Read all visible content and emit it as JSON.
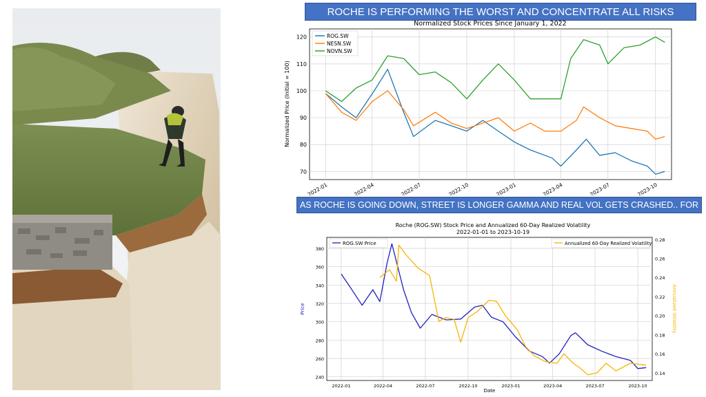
{
  "banners": {
    "top": "ROCHE IS PERFORMING THE WORST AND CONCENTRATE ALL RISKS",
    "middle": "AS ROCHE IS GOING DOWN, STREET IS LONGER GAMMA AND REAL VOL GETS CRASHED.. FOR THE MOMENT"
  },
  "colors": {
    "banner": "#4472c4",
    "rog": "#1f77b4",
    "nesn": "#ff7f0e",
    "novn": "#2ca02c",
    "price": "#1f1fbf",
    "vol": "#f5b400"
  },
  "chart_data": [
    {
      "type": "line",
      "title": "Normalized Stock Prices Since January 1, 2022",
      "xlabel": "",
      "ylabel": "Normalized Price (Initial = 100)",
      "x_ticks": [
        "2022-01",
        "2022-04",
        "2022-07",
        "2022-10",
        "2023-01",
        "2023-04",
        "2023-07",
        "2023-10"
      ],
      "y_ticks": [
        70,
        80,
        90,
        100,
        110,
        120
      ],
      "xlim": [
        "2021-12-01",
        "2023-11-01"
      ],
      "ylim": [
        67,
        123
      ],
      "grid": true,
      "legend": "top-left",
      "series": [
        {
          "name": "ROG.SW",
          "x": [
            "2022-01-01",
            "2022-02-01",
            "2022-03-01",
            "2022-04-05",
            "2022-05-01",
            "2022-06-01",
            "2022-06-20",
            "2022-08-01",
            "2022-09-01",
            "2022-10-01",
            "2022-11-01",
            "2022-12-01",
            "2023-01-01",
            "2023-02-01",
            "2023-03-15",
            "2023-04-01",
            "2023-05-01",
            "2023-05-20",
            "2023-06-15",
            "2023-07-15",
            "2023-08-15",
            "2023-09-15",
            "2023-10-01",
            "2023-10-19"
          ],
          "values": [
            99,
            94,
            90,
            100,
            108,
            92,
            83,
            89,
            87,
            85,
            89,
            85,
            81,
            78,
            75,
            72,
            78,
            82,
            76,
            77,
            74,
            72,
            69,
            70
          ]
        },
        {
          "name": "NESN.SW",
          "x": [
            "2022-01-01",
            "2022-02-01",
            "2022-03-01",
            "2022-04-01",
            "2022-05-01",
            "2022-06-01",
            "2022-06-20",
            "2022-08-01",
            "2022-09-01",
            "2022-10-01",
            "2022-11-01",
            "2022-12-01",
            "2023-01-01",
            "2023-02-01",
            "2023-03-01",
            "2023-04-01",
            "2023-05-01",
            "2023-05-15",
            "2023-06-15",
            "2023-07-15",
            "2023-08-15",
            "2023-09-15",
            "2023-10-01",
            "2023-10-19"
          ],
          "values": [
            99,
            92,
            89,
            96,
            100,
            93,
            87,
            92,
            88,
            86,
            88,
            90,
            85,
            88,
            85,
            85,
            89,
            94,
            90,
            87,
            86,
            85,
            82,
            83
          ]
        },
        {
          "name": "NOVN.SW",
          "x": [
            "2022-01-01",
            "2022-02-01",
            "2022-03-01",
            "2022-04-01",
            "2022-05-01",
            "2022-06-01",
            "2022-07-01",
            "2022-08-01",
            "2022-09-01",
            "2022-10-01",
            "2022-11-01",
            "2022-12-01",
            "2023-01-01",
            "2023-02-01",
            "2023-03-01",
            "2023-04-01",
            "2023-04-20",
            "2023-05-15",
            "2023-06-15",
            "2023-07-01",
            "2023-08-01",
            "2023-09-01",
            "2023-10-01",
            "2023-10-19"
          ],
          "values": [
            100,
            96,
            101,
            104,
            113,
            112,
            106,
            107,
            103,
            97,
            104,
            110,
            104,
            97,
            97,
            97,
            112,
            119,
            117,
            110,
            116,
            117,
            120,
            118
          ]
        }
      ]
    },
    {
      "type": "line",
      "title": "Roche (ROG.SW) Stock Price and Annualized 60-Day Realized Volatility",
      "subtitle": "2022-01-01 to 2023-10-19",
      "xlabel": "Date",
      "ylabel": "Price",
      "ylabel_right": "Annualized Volatility",
      "x_ticks": [
        "2022-01",
        "2022-04",
        "2022-07",
        "2022-10",
        "2023-01",
        "2023-04",
        "2023-07",
        "2023-10"
      ],
      "y_ticks": [
        240,
        260,
        280,
        300,
        320,
        340,
        360,
        380
      ],
      "y_ticks_right": [
        0.14,
        0.16,
        0.18,
        0.2,
        0.22,
        0.24,
        0.26,
        0.28
      ],
      "xlim": [
        "2021-12-01",
        "2023-11-01"
      ],
      "ylim": [
        236,
        392
      ],
      "ylim_right": [
        0.132,
        0.282
      ],
      "grid": true,
      "legend": "top-left / top-right",
      "series": [
        {
          "name": "ROG.SW Price",
          "axis": "left",
          "x": [
            "2022-01-01",
            "2022-01-20",
            "2022-02-15",
            "2022-03-10",
            "2022-03-25",
            "2022-04-10",
            "2022-04-20",
            "2022-05-15",
            "2022-06-01",
            "2022-06-20",
            "2022-07-15",
            "2022-08-15",
            "2022-09-15",
            "2022-10-15",
            "2022-11-01",
            "2022-11-20",
            "2022-12-15",
            "2023-01-10",
            "2023-02-10",
            "2023-03-10",
            "2023-03-25",
            "2023-04-15",
            "2023-05-10",
            "2023-05-20",
            "2023-06-15",
            "2023-07-15",
            "2023-08-15",
            "2023-09-15",
            "2023-10-01",
            "2023-10-19"
          ],
          "values": [
            352,
            338,
            318,
            335,
            322,
            365,
            385,
            335,
            310,
            293,
            308,
            302,
            303,
            316,
            318,
            305,
            300,
            284,
            268,
            262,
            255,
            265,
            285,
            288,
            275,
            268,
            262,
            258,
            249,
            250
          ]
        },
        {
          "name": "Annualized 60-Day Realized Volatility",
          "axis": "right",
          "x": [
            "2022-03-25",
            "2022-04-15",
            "2022-04-30",
            "2022-05-05",
            "2022-05-20",
            "2022-06-15",
            "2022-07-10",
            "2022-07-30",
            "2022-08-15",
            "2022-09-01",
            "2022-09-15",
            "2022-10-01",
            "2022-10-20",
            "2022-11-15",
            "2022-12-01",
            "2022-12-20",
            "2023-01-15",
            "2023-02-01",
            "2023-02-20",
            "2023-03-15",
            "2023-04-10",
            "2023-04-25",
            "2023-05-15",
            "2023-05-30",
            "2023-06-15",
            "2023-07-05",
            "2023-07-25",
            "2023-08-15",
            "2023-09-15",
            "2023-10-19"
          ],
          "values": [
            0.24,
            0.248,
            0.236,
            0.274,
            0.264,
            0.25,
            0.242,
            0.194,
            0.198,
            0.196,
            0.172,
            0.198,
            0.204,
            0.216,
            0.215,
            0.2,
            0.185,
            0.168,
            0.158,
            0.152,
            0.15,
            0.16,
            0.15,
            0.145,
            0.138,
            0.14,
            0.15,
            0.142,
            0.15,
            0.148
          ]
        }
      ]
    }
  ]
}
